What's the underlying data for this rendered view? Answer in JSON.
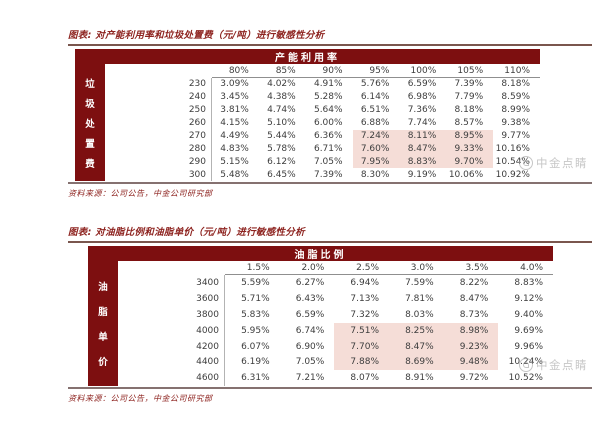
{
  "colors": {
    "header_bg": "#7d0f10",
    "accent_red": "#8e2420",
    "highlight_pink": "#f5ddd7",
    "rule_gray": "#857170",
    "watermark_gray": "#a8a8a8"
  },
  "watermark": {
    "text": "中金点睛",
    "icon": "cicc-logo-circle"
  },
  "figures": [
    {
      "title": "图表: 对产能利用率和垃圾处置费（元/吨）进行敏感性分析",
      "source": "资料来源：公司公告，中金公司研究部",
      "table": {
        "column_group": "产能利用率",
        "row_group": "垃圾处置费",
        "col_headers": [
          "80%",
          "85%",
          "90%",
          "95%",
          "100%",
          "105%",
          "110%"
        ],
        "rows": [
          {
            "label": "230",
            "values": [
              "3.09%",
              "4.02%",
              "4.91%",
              "5.76%",
              "6.59%",
              "7.39%",
              "8.18%"
            ]
          },
          {
            "label": "240",
            "values": [
              "3.45%",
              "4.38%",
              "5.28%",
              "6.14%",
              "6.98%",
              "7.79%",
              "8.59%"
            ]
          },
          {
            "label": "250",
            "values": [
              "3.81%",
              "4.74%",
              "5.64%",
              "6.51%",
              "7.36%",
              "8.18%",
              "8.99%"
            ]
          },
          {
            "label": "260",
            "values": [
              "4.15%",
              "5.10%",
              "6.00%",
              "6.88%",
              "7.74%",
              "8.57%",
              "9.38%"
            ]
          },
          {
            "label": "270",
            "values": [
              "4.49%",
              "5.44%",
              "6.36%",
              "7.24%",
              "8.11%",
              "8.95%",
              "9.77%"
            ]
          },
          {
            "label": "280",
            "values": [
              "4.83%",
              "5.78%",
              "6.71%",
              "7.60%",
              "8.47%",
              "9.33%",
              "10.16%"
            ]
          },
          {
            "label": "290",
            "values": [
              "5.15%",
              "6.12%",
              "7.05%",
              "7.95%",
              "8.83%",
              "9.70%",
              "10.54%"
            ]
          },
          {
            "label": "300",
            "values": [
              "5.48%",
              "6.45%",
              "7.39%",
              "8.30%",
              "9.19%",
              "10.06%",
              "10.92%"
            ]
          }
        ],
        "highlight_rows": [
          4,
          5,
          6
        ],
        "highlight_cols": [
          3,
          4,
          5
        ]
      }
    },
    {
      "title": "图表: 对油脂比例和油脂单价（元/吨）进行敏感性分析",
      "source": "资料来源：公司公告，中金公司研究部",
      "table": {
        "column_group": "油脂比例",
        "row_group": "油脂单价",
        "col_headers": [
          "1.5%",
          "2.0%",
          "2.5%",
          "3.0%",
          "3.5%",
          "4.0%"
        ],
        "rows": [
          {
            "label": "3400",
            "values": [
              "5.59%",
              "6.27%",
              "6.94%",
              "7.59%",
              "8.22%",
              "8.83%"
            ]
          },
          {
            "label": "3600",
            "values": [
              "5.71%",
              "6.43%",
              "7.13%",
              "7.81%",
              "8.47%",
              "9.12%"
            ]
          },
          {
            "label": "3800",
            "values": [
              "5.83%",
              "6.59%",
              "7.32%",
              "8.03%",
              "8.73%",
              "9.40%"
            ]
          },
          {
            "label": "4000",
            "values": [
              "5.95%",
              "6.74%",
              "7.51%",
              "8.25%",
              "8.98%",
              "9.69%"
            ]
          },
          {
            "label": "4200",
            "values": [
              "6.07%",
              "6.90%",
              "7.70%",
              "8.47%",
              "9.23%",
              "9.96%"
            ]
          },
          {
            "label": "4400",
            "values": [
              "6.19%",
              "7.05%",
              "7.88%",
              "8.69%",
              "9.48%",
              "10.24%"
            ]
          },
          {
            "label": "4600",
            "values": [
              "6.31%",
              "7.21%",
              "8.07%",
              "8.91%",
              "9.72%",
              "10.52%"
            ]
          }
        ],
        "highlight_rows": [
          3,
          4,
          5
        ],
        "highlight_cols": [
          2,
          3,
          4
        ]
      }
    }
  ]
}
